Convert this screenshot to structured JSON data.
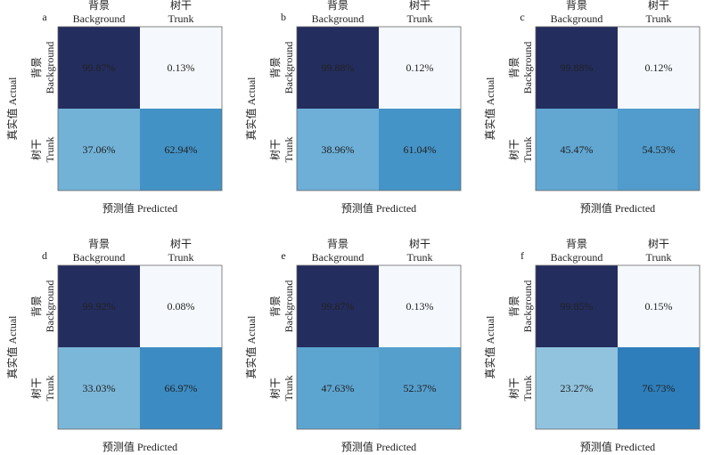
{
  "figure": {
    "col_labels": [
      {
        "zh": "背景",
        "en": "Background"
      },
      {
        "zh": "树干",
        "en": "Trunk"
      }
    ],
    "row_labels": [
      {
        "zh": "背景",
        "en": "Background"
      },
      {
        "zh": "树干",
        "en": "Trunk"
      }
    ],
    "xlabel": "预测值 Predicted",
    "ylabel": "真实值 Actual",
    "colors": {
      "dark": "#232d5e",
      "light": "#f5f9fd",
      "colormap": "Blues"
    }
  },
  "chart_data": [
    {
      "type": "heatmap",
      "panel": "a",
      "values": [
        [
          "99.87%",
          "0.13%"
        ],
        [
          "37.06%",
          "62.94%"
        ]
      ]
    },
    {
      "type": "heatmap",
      "panel": "b",
      "values": [
        [
          "99.88%",
          "0.12%"
        ],
        [
          "38.96%",
          "61.04%"
        ]
      ]
    },
    {
      "type": "heatmap",
      "panel": "c",
      "values": [
        [
          "99.88%",
          "0.12%"
        ],
        [
          "45.47%",
          "54.53%"
        ]
      ]
    },
    {
      "type": "heatmap",
      "panel": "d",
      "values": [
        [
          "99.92%",
          "0.08%"
        ],
        [
          "33.03%",
          "66.97%"
        ]
      ]
    },
    {
      "type": "heatmap",
      "panel": "e",
      "values": [
        [
          "99.87%",
          "0.13%"
        ],
        [
          "47.63%",
          "52.37%"
        ]
      ]
    },
    {
      "type": "heatmap",
      "panel": "f",
      "values": [
        [
          "99.85%",
          "0.15%"
        ],
        [
          "23.27%",
          "76.73%"
        ]
      ]
    }
  ]
}
